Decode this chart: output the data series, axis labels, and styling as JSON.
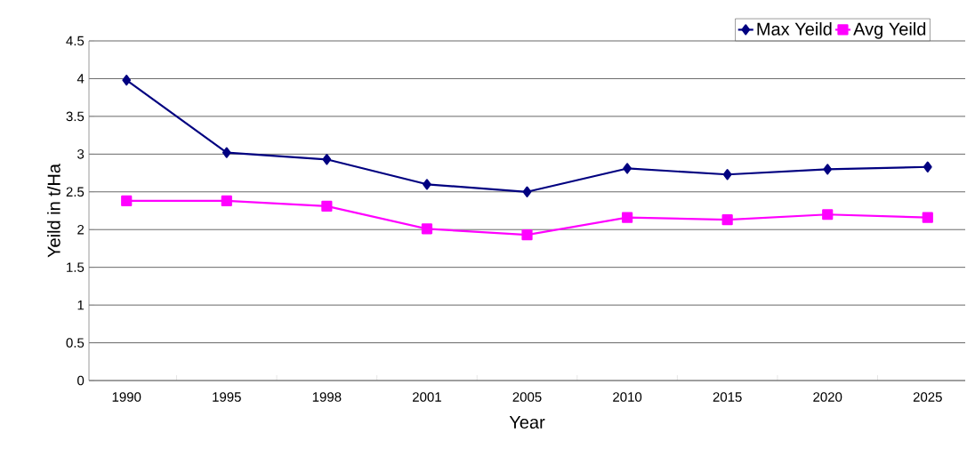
{
  "chart_data": {
    "type": "line",
    "xlabel": "Year",
    "ylabel": "Yeild in t/Ha",
    "categories": [
      "1990",
      "1995",
      "1998",
      "2001",
      "2005",
      "2010",
      "2015",
      "2020",
      "2025"
    ],
    "series": [
      {
        "name": "Max Yeild",
        "color": "#000080",
        "marker": "diamond",
        "values": [
          3.98,
          3.02,
          2.93,
          2.6,
          2.5,
          2.81,
          2.73,
          2.8,
          2.83
        ]
      },
      {
        "name": "Avg Yeild",
        "color": "#ff00ff",
        "marker": "square",
        "values": [
          2.38,
          2.38,
          2.31,
          2.01,
          1.93,
          2.16,
          2.13,
          2.2,
          2.16
        ]
      }
    ],
    "ylim": [
      0,
      4.5
    ],
    "yticks": [
      0,
      0.5,
      1,
      1.5,
      2,
      2.5,
      3,
      3.5,
      4,
      4.5
    ],
    "grid": "y",
    "legend": "top right",
    "line_style": "solid"
  }
}
